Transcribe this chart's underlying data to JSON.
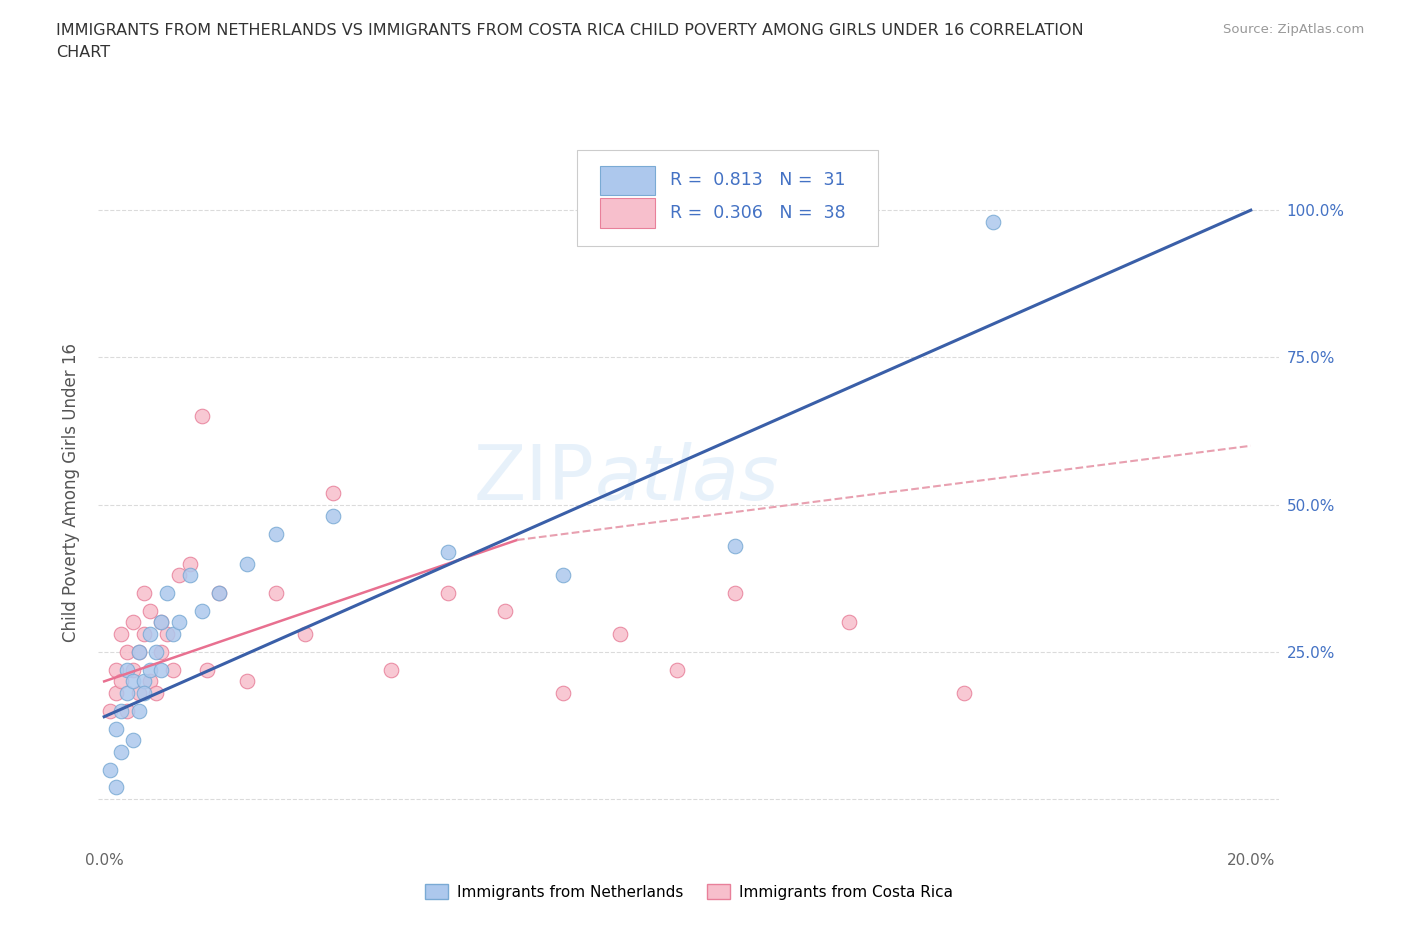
{
  "title_line1": "IMMIGRANTS FROM NETHERLANDS VS IMMIGRANTS FROM COSTA RICA CHILD POVERTY AMONG GIRLS UNDER 16 CORRELATION",
  "title_line2": "CHART",
  "source_text": "Source: ZipAtlas.com",
  "ylabel": "Child Poverty Among Girls Under 16",
  "xlim": [
    -0.001,
    0.205
  ],
  "ylim": [
    -0.08,
    1.12
  ],
  "x_ticks": [
    0.0,
    0.05,
    0.1,
    0.15,
    0.2
  ],
  "y_ticks": [
    0.0,
    0.25,
    0.5,
    0.75,
    1.0
  ],
  "watermark": "ZIPatlas",
  "netherlands_color": "#adc8ed",
  "netherlands_edge": "#7aaad4",
  "costarica_color": "#f7bfcc",
  "costarica_edge": "#e8809a",
  "netherlands_R": 0.813,
  "netherlands_N": 31,
  "costarica_R": 0.306,
  "costarica_N": 38,
  "netherlands_line_color": "#3a5fa8",
  "costarica_line_color": "#e87090",
  "costarica_line_dash_color": "#e8a0b0",
  "tick_color": "#4472c4",
  "legend_label_netherlands": "Immigrants from Netherlands",
  "legend_label_costarica": "Immigrants from Costa Rica",
  "netherlands_x": [
    0.001,
    0.002,
    0.002,
    0.003,
    0.003,
    0.004,
    0.004,
    0.005,
    0.005,
    0.006,
    0.006,
    0.007,
    0.007,
    0.008,
    0.008,
    0.009,
    0.01,
    0.01,
    0.011,
    0.012,
    0.013,
    0.015,
    0.017,
    0.02,
    0.025,
    0.03,
    0.04,
    0.06,
    0.08,
    0.11,
    0.155
  ],
  "netherlands_y": [
    0.05,
    0.02,
    0.12,
    0.08,
    0.15,
    0.18,
    0.22,
    0.1,
    0.2,
    0.15,
    0.25,
    0.2,
    0.18,
    0.22,
    0.28,
    0.25,
    0.22,
    0.3,
    0.35,
    0.28,
    0.3,
    0.38,
    0.32,
    0.35,
    0.4,
    0.45,
    0.48,
    0.42,
    0.38,
    0.43,
    0.98
  ],
  "costarica_x": [
    0.001,
    0.002,
    0.002,
    0.003,
    0.003,
    0.004,
    0.004,
    0.005,
    0.005,
    0.006,
    0.006,
    0.007,
    0.007,
    0.008,
    0.008,
    0.009,
    0.01,
    0.01,
    0.011,
    0.012,
    0.013,
    0.015,
    0.017,
    0.018,
    0.02,
    0.025,
    0.03,
    0.035,
    0.04,
    0.05,
    0.06,
    0.07,
    0.08,
    0.09,
    0.1,
    0.11,
    0.13,
    0.15
  ],
  "costarica_y": [
    0.15,
    0.18,
    0.22,
    0.2,
    0.28,
    0.25,
    0.15,
    0.3,
    0.22,
    0.18,
    0.25,
    0.35,
    0.28,
    0.2,
    0.32,
    0.18,
    0.25,
    0.3,
    0.28,
    0.22,
    0.38,
    0.4,
    0.65,
    0.22,
    0.35,
    0.2,
    0.35,
    0.28,
    0.52,
    0.22,
    0.35,
    0.32,
    0.18,
    0.28,
    0.22,
    0.35,
    0.3,
    0.18
  ],
  "background_color": "#ffffff",
  "grid_color": "#cccccc"
}
